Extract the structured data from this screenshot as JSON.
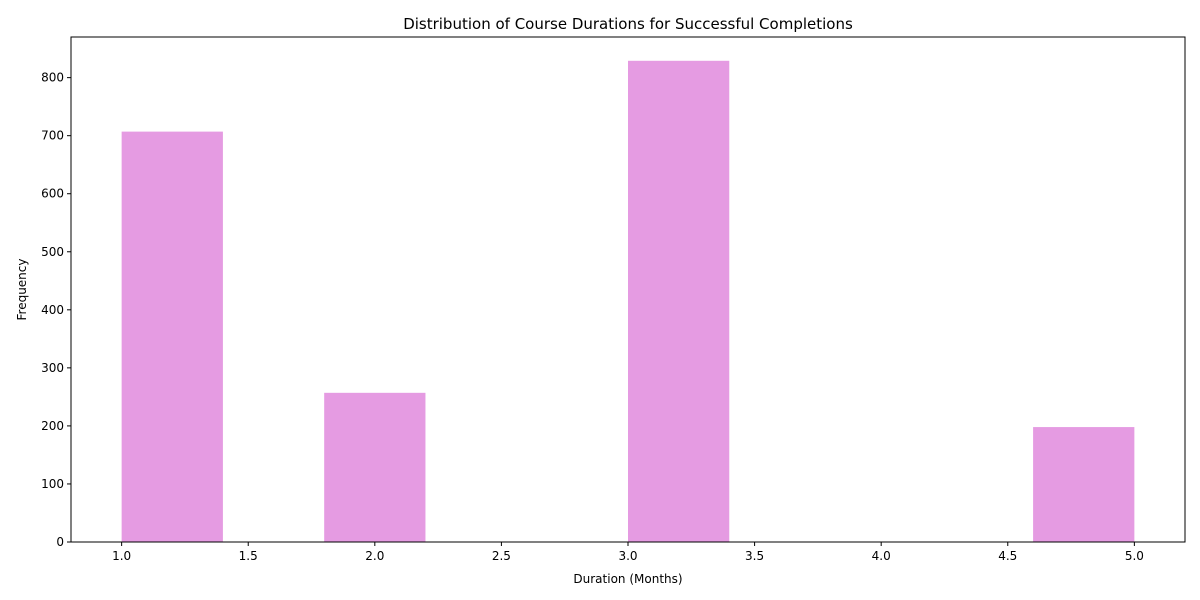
{
  "chart_data": {
    "type": "histogram",
    "title": "Distribution of Course Durations for Successful Completions",
    "xlabel": "Duration (Months)",
    "ylabel": "Frequency",
    "xlim": [
      0.8,
      5.2
    ],
    "ylim": [
      0,
      870
    ],
    "xticks": [
      1.0,
      1.5,
      2.0,
      2.5,
      3.0,
      3.5,
      4.0,
      4.5,
      5.0
    ],
    "xtick_labels": [
      "1.0",
      "1.5",
      "2.0",
      "2.5",
      "3.0",
      "3.5",
      "4.0",
      "4.5",
      "5.0"
    ],
    "yticks": [
      0,
      100,
      200,
      300,
      400,
      500,
      600,
      700,
      800
    ],
    "ytick_labels": [
      "0",
      "100",
      "200",
      "300",
      "400",
      "500",
      "600",
      "700",
      "800"
    ],
    "bins": [
      {
        "start": 1.0,
        "end": 1.4,
        "value": 707
      },
      {
        "start": 1.4,
        "end": 1.8,
        "value": 0
      },
      {
        "start": 1.8,
        "end": 2.2,
        "value": 257
      },
      {
        "start": 2.2,
        "end": 2.6,
        "value": 0
      },
      {
        "start": 2.6,
        "end": 3.0,
        "value": 0
      },
      {
        "start": 3.0,
        "end": 3.4,
        "value": 829
      },
      {
        "start": 3.4,
        "end": 3.8,
        "value": 0
      },
      {
        "start": 3.8,
        "end": 4.2,
        "value": 0
      },
      {
        "start": 4.2,
        "end": 4.6,
        "value": 0
      },
      {
        "start": 4.6,
        "end": 5.0,
        "value": 198
      }
    ],
    "bar_color": "#e59be2",
    "grid": false,
    "legend": "none"
  }
}
